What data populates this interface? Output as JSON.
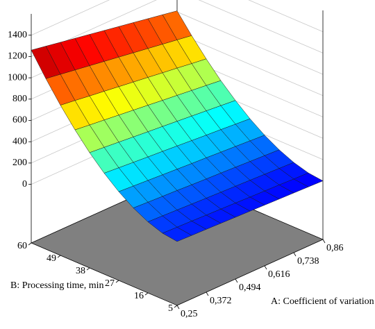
{
  "chart_data": {
    "type": "surface",
    "xlabel": "A: Coefficient of variation",
    "ylabel": "B: Processing time, min",
    "x": [
      0.25,
      0.311,
      0.372,
      0.433,
      0.494,
      0.555,
      0.616,
      0.677,
      0.738,
      0.799,
      0.86
    ],
    "y": [
      5,
      10.5,
      16,
      21.5,
      27,
      32.5,
      38,
      43.5,
      49,
      54.5,
      60
    ],
    "z": [
      [
        50,
        45,
        40,
        35,
        30,
        25,
        20,
        15,
        10,
        5,
        0
      ],
      [
        69,
        64,
        59,
        53,
        48,
        43,
        37,
        32,
        27,
        21,
        16
      ],
      [
        117,
        111,
        105,
        98,
        92,
        86,
        80,
        74,
        68,
        62,
        56
      ],
      [
        189,
        181,
        174,
        167,
        159,
        152,
        145,
        138,
        130,
        123,
        116
      ],
      [
        283,
        274,
        265,
        256,
        247,
        238,
        230,
        221,
        212,
        203,
        194
      ],
      [
        398,
        387,
        376,
        365,
        355,
        344,
        333,
        322,
        312,
        301,
        290
      ],
      [
        532,
        520,
        507,
        494,
        481,
        468,
        455,
        442,
        429,
        416,
        403
      ],
      [
        687,
        671,
        656,
        640,
        625,
        609,
        593,
        578,
        562,
        547,
        531
      ],
      [
        860,
        842,
        823,
        805,
        786,
        768,
        750,
        731,
        713,
        694,
        676
      ],
      [
        1051,
        1029,
        1008,
        986,
        965,
        943,
        922,
        900,
        879,
        857,
        836
      ],
      [
        1260,
        1235,
        1210,
        1185,
        1160,
        1135,
        1110,
        1085,
        1060,
        1035,
        1010
      ]
    ],
    "xlim": [
      0.25,
      0.86
    ],
    "ylim": [
      5,
      60
    ],
    "zlim": [
      -550,
      1600
    ],
    "xticks": [
      {
        "value": 0.25,
        "label": "0,25"
      },
      {
        "value": 0.372,
        "label": "0,372"
      },
      {
        "value": 0.494,
        "label": "0,494"
      },
      {
        "value": 0.616,
        "label": "0,616"
      },
      {
        "value": 0.738,
        "label": "0,738"
      },
      {
        "value": 0.86,
        "label": "0,86"
      }
    ],
    "yticks": [
      5,
      16,
      27,
      38,
      49,
      60
    ],
    "zticks": [
      0,
      200,
      400,
      600,
      800,
      1000,
      1200,
      1400
    ],
    "colormap": "jet",
    "floor_color": "#808080"
  }
}
